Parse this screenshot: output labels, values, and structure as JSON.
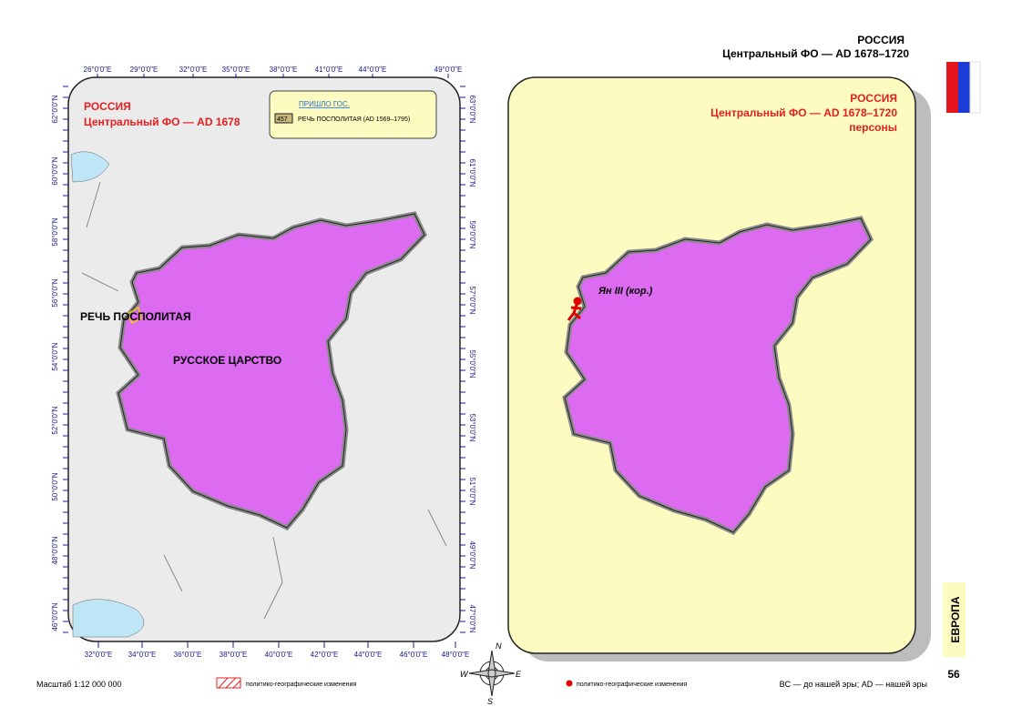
{
  "header": {
    "country": "РОССИЯ",
    "subtitle": "Центральный ФО —  AD 1678–1720"
  },
  "left_map": {
    "title": "РОССИЯ",
    "subtitle": "Центральный ФО  —  AD 1678",
    "legend": {
      "heading": "ПРИШЛО ГОС.",
      "code": "457",
      "entry": "РЕЧЬ ПОСПОЛИТАЯ (AD 1569–1795)"
    },
    "labels": [
      "РЕЧЬ ПОСПОЛИТАЯ",
      "РУССКОЕ ЦАРСТВО"
    ],
    "top_ticks": [
      "26°0'0\"E",
      "29°0'0\"E",
      "32°0'0\"E",
      "35°0'0\"E",
      "38°0'0\"E",
      "41°0'0\"E",
      "44°0'0\"E",
      "49°0'0\"E"
    ],
    "bottom_ticks": [
      "32°0'0\"E",
      "34°0'0\"E",
      "36°0'0\"E",
      "38°0'0\"E",
      "40°0'0\"E",
      "42°0'0\"E",
      "44°0'0\"E",
      "46°0'0\"E",
      "48°0'0\"E"
    ],
    "left_ticks": [
      "62°0'0\"N",
      "60°0'0\"N",
      "58°0'0\"N",
      "56°0'0\"N",
      "54°0'0\"N",
      "52°0'0\"N",
      "50°0'0\"N",
      "48°0'0\"N",
      "46°0'0\"N"
    ],
    "right_ticks": [
      "63°0'0\"N",
      "61°0'0\"N",
      "59°0'0\"N",
      "57°0'0\"N",
      "55°0'0\"N",
      "53°0'0\"N",
      "51°0'0\"N",
      "49°0'0\"N",
      "47°0'0\"N"
    ]
  },
  "right_map": {
    "title": "РОССИЯ",
    "subtitle": "Центральный ФО  —  AD 1678–1720",
    "category": "персоны",
    "person": "Ян III (кор.)"
  },
  "compass": {
    "n": "N",
    "e": "E",
    "s": "S",
    "w": "W"
  },
  "footer": {
    "scale": "Масштаб 1:12 000 000",
    "legend_changes": "политико-географические изменения",
    "legend_points": "политико-географические изменения",
    "era_note": "BC — до нашей эры; AD — нашей эры",
    "section": "ЕВРОПА",
    "page": "56"
  }
}
